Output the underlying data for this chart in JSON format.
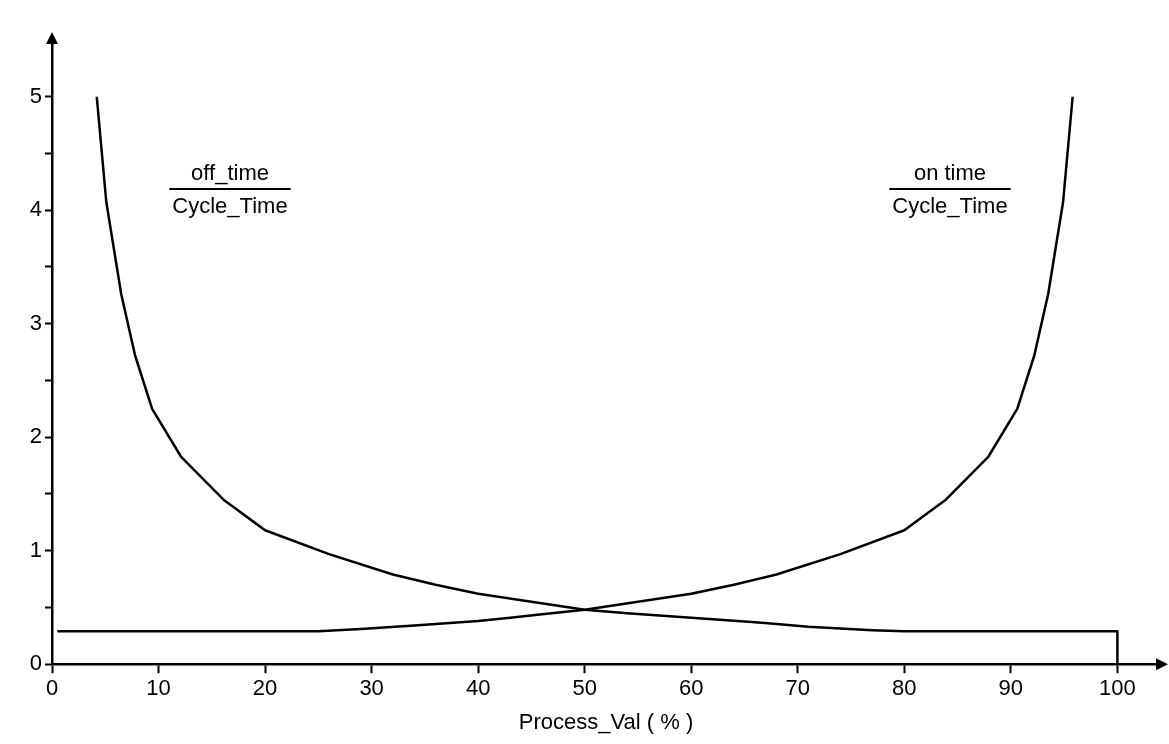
{
  "chart_data": {
    "type": "line",
    "xlabel": "Process_Val ( % )",
    "annotations": [
      "off_time",
      "Cycle_Time",
      "on time",
      "Cycle_Time"
    ],
    "series": [
      {
        "color": "#000000",
        "x": [
          4.2,
          5.1,
          6.5,
          7.8,
          9.4,
          12.1,
          16.1,
          20,
          26,
          32,
          36,
          40,
          45,
          50,
          54,
          60,
          66,
          71,
          77,
          80,
          100,
          100
        ],
        "values": [
          5.0,
          4.07,
          3.26,
          2.72,
          2.25,
          1.83,
          1.45,
          1.18,
          0.97,
          0.79,
          0.7,
          0.62,
          0.55,
          0.48,
          0.45,
          0.41,
          0.37,
          0.33,
          0.3,
          0.29,
          0.29,
          0
        ]
      },
      {
        "color": "#000000",
        "x": [
          0.5,
          20,
          25,
          29,
          34,
          40,
          46,
          50,
          55,
          60,
          64,
          68,
          74,
          80,
          83.9,
          87.9,
          90.6,
          92.2,
          93.5,
          94.9,
          95.8
        ],
        "values": [
          0.29,
          0.29,
          0.29,
          0.31,
          0.34,
          0.38,
          0.44,
          0.48,
          0.55,
          0.62,
          0.7,
          0.79,
          0.97,
          1.18,
          1.45,
          1.83,
          2.25,
          2.72,
          3.26,
          4.07,
          5.0
        ]
      }
    ],
    "xlim": [
      0,
      104
    ],
    "xticks": [
      0,
      10,
      20,
      30,
      40,
      50,
      60,
      70,
      80,
      90,
      100
    ],
    "ylim": [
      0,
      5.5
    ],
    "yticks": [
      0,
      {
        "value": 0.5,
        "label": null
      },
      1,
      {
        "value": 1.5,
        "label": null
      },
      2,
      {
        "value": 2.5,
        "label": null
      },
      3,
      {
        "value": 3.5,
        "label": null
      },
      4,
      {
        "value": 4.5,
        "label": null
      },
      5
    ],
    "grid": false,
    "legend": false,
    "marker": "none",
    "line_style": "solid"
  }
}
